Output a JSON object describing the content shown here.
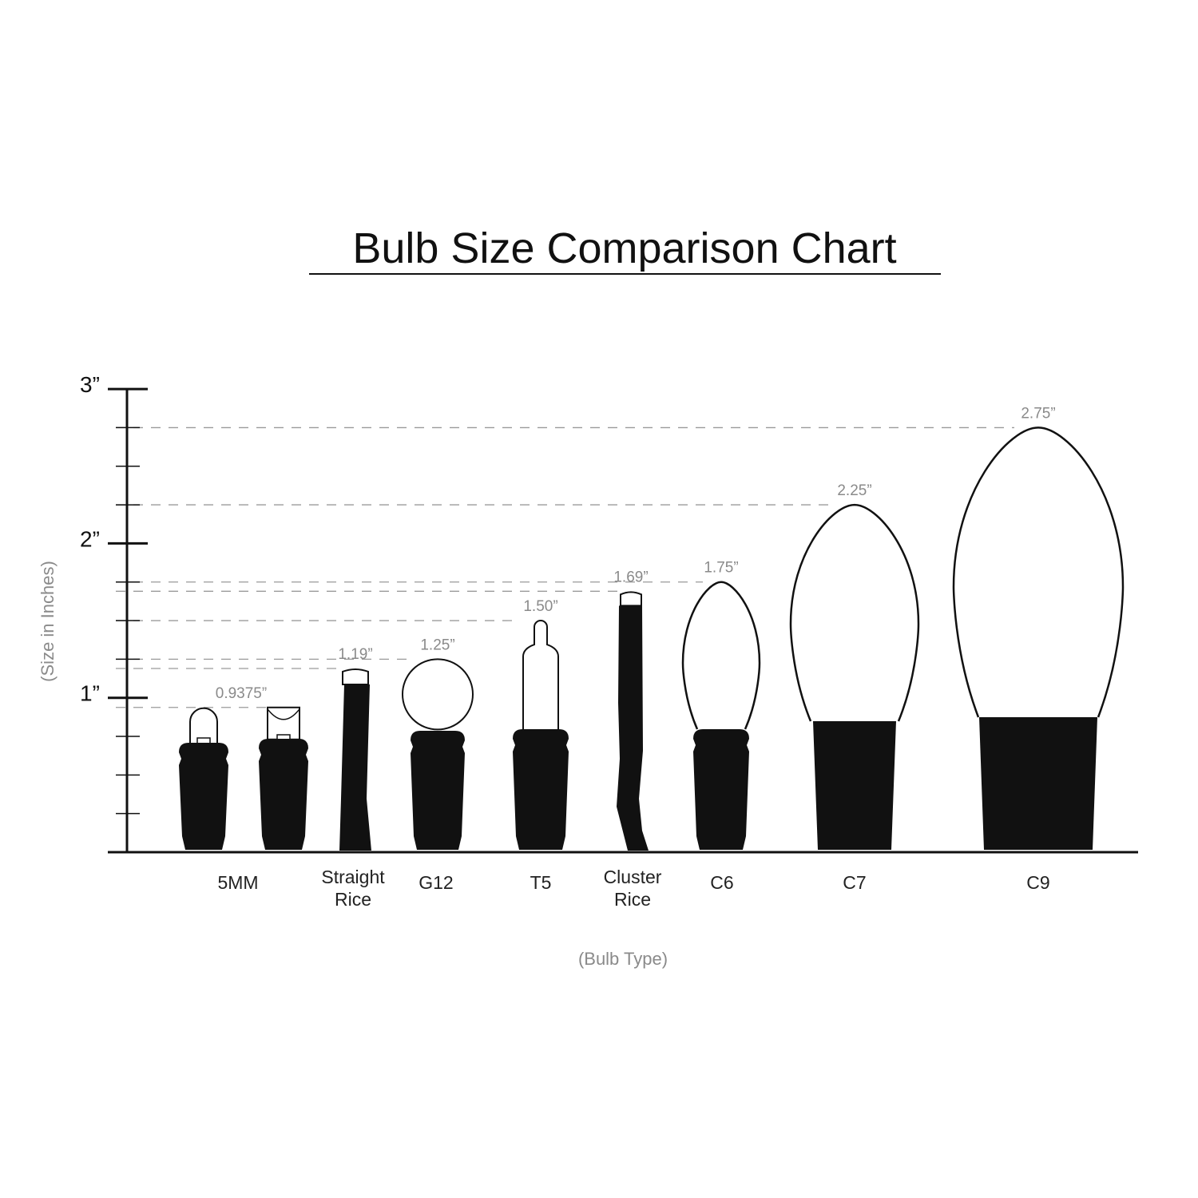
{
  "chart_data": {
    "type": "bar",
    "title": "Bulb Size Comparison Chart",
    "xlabel": "(Bulb Type)",
    "ylabel": "(Size in Inches)",
    "ylim": [
      0,
      3
    ],
    "y_ticks": [
      {
        "value": 1,
        "label": "1”"
      },
      {
        "value": 2,
        "label": "2”"
      },
      {
        "value": 3,
        "label": "3”"
      }
    ],
    "minor_tick_step": 0.25,
    "grid": "dashed reference lines at each bulb height",
    "bulbs": [
      {
        "category": "5MM",
        "value": 0.9375,
        "label": "0.9375”",
        "shape": "5mm-dome"
      },
      {
        "category": "5MM",
        "value": 0.9375,
        "label": "",
        "shape": "5mm-wide-angle"
      },
      {
        "category": "Straight Rice",
        "value": 1.19,
        "label": "1.19”",
        "shape": "straight-rice"
      },
      {
        "category": "G12",
        "value": 1.25,
        "label": "1.25”",
        "shape": "globe"
      },
      {
        "category": "T5",
        "value": 1.5,
        "label": "1.50”",
        "shape": "t5-tube"
      },
      {
        "category": "Cluster Rice",
        "value": 1.69,
        "label": "1.69”",
        "shape": "cluster-rice"
      },
      {
        "category": "C6",
        "value": 1.75,
        "label": "1.75”",
        "shape": "c-bulb"
      },
      {
        "category": "C7",
        "value": 2.25,
        "label": "2.25”",
        "shape": "c-bulb"
      },
      {
        "category": "C9",
        "value": 2.75,
        "label": "2.75”",
        "shape": "c-bulb"
      }
    ],
    "category_labels": [
      {
        "line1": "5MM",
        "line2": ""
      },
      {
        "line1": "Straight",
        "line2": "Rice"
      },
      {
        "line1": "G12",
        "line2": ""
      },
      {
        "line1": "T5",
        "line2": ""
      },
      {
        "line1": "Cluster",
        "line2": "Rice"
      },
      {
        "line1": "C6",
        "line2": ""
      },
      {
        "line1": "C7",
        "line2": ""
      },
      {
        "line1": "C9",
        "line2": ""
      }
    ],
    "colors": {
      "ink": "#111111",
      "reference": "#9a9a9a",
      "value_label": "#8a8a8a"
    }
  }
}
